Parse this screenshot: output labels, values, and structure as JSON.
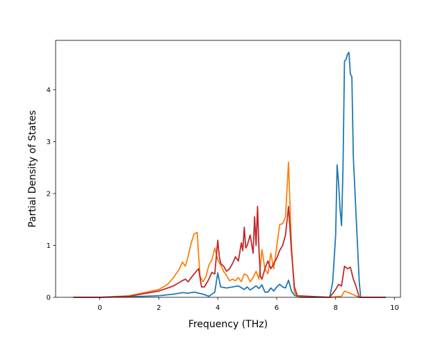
{
  "chart_data": {
    "type": "line",
    "xlabel": "Frequency (THz)",
    "ylabel": "Partial Density of States",
    "xlim": [
      -1.5,
      10.2
    ],
    "ylim": [
      0,
      4.95
    ],
    "xticks": [
      0,
      2,
      4,
      6,
      8,
      10
    ],
    "yticks": [
      0,
      1,
      2,
      3,
      4
    ],
    "grid": false,
    "series": [
      {
        "color": "#1f77b4",
        "x": [
          -0.9,
          0.0,
          1.0,
          2.0,
          2.5,
          2.8,
          3.0,
          3.2,
          3.5,
          3.7,
          3.9,
          4.0,
          4.1,
          4.3,
          4.5,
          4.7,
          4.9,
          5.0,
          5.1,
          5.2,
          5.3,
          5.4,
          5.5,
          5.6,
          5.7,
          5.8,
          5.9,
          6.0,
          6.1,
          6.2,
          6.3,
          6.4,
          6.5,
          6.6,
          6.7,
          6.8,
          7.8,
          7.9,
          8.0,
          8.05,
          8.1,
          8.15,
          8.2,
          8.25,
          8.3,
          8.35,
          8.4,
          8.45,
          8.5,
          8.55,
          8.6,
          8.7,
          8.8,
          8.85,
          9.7
        ],
        "y": [
          0,
          0,
          0.01,
          0.03,
          0.06,
          0.09,
          0.08,
          0.1,
          0.06,
          0.02,
          0.1,
          0.47,
          0.2,
          0.18,
          0.2,
          0.22,
          0.15,
          0.2,
          0.14,
          0.18,
          0.22,
          0.17,
          0.24,
          0.1,
          0.1,
          0.18,
          0.12,
          0.2,
          0.25,
          0.2,
          0.18,
          0.33,
          0.12,
          0.04,
          0.02,
          0,
          0,
          0.3,
          1.2,
          2.55,
          2.2,
          1.7,
          1.38,
          2.5,
          4.55,
          4.58,
          4.68,
          4.72,
          4.3,
          4.25,
          2.7,
          1.5,
          0.3,
          0,
          0
        ]
      },
      {
        "color": "#ff7f0e",
        "x": [
          -0.9,
          0.0,
          1.0,
          2.0,
          2.3,
          2.5,
          2.7,
          2.8,
          2.9,
          3.0,
          3.1,
          3.2,
          3.3,
          3.4,
          3.5,
          3.6,
          3.7,
          3.8,
          3.9,
          4.0,
          4.1,
          4.2,
          4.3,
          4.4,
          4.5,
          4.6,
          4.7,
          4.8,
          4.9,
          5.0,
          5.1,
          5.2,
          5.3,
          5.4,
          5.5,
          5.6,
          5.7,
          5.8,
          5.9,
          6.0,
          6.1,
          6.2,
          6.3,
          6.4,
          6.5,
          6.6,
          6.7,
          7.8,
          8.2,
          8.3,
          8.4,
          8.6,
          8.8,
          9.7
        ],
        "y": [
          0,
          0,
          0.03,
          0.15,
          0.25,
          0.38,
          0.55,
          0.68,
          0.6,
          0.8,
          1.05,
          1.22,
          1.25,
          0.4,
          0.3,
          0.4,
          0.62,
          0.72,
          0.95,
          0.72,
          0.62,
          0.5,
          0.42,
          0.32,
          0.35,
          0.32,
          0.38,
          0.3,
          0.45,
          0.42,
          0.3,
          0.38,
          0.5,
          0.35,
          0.92,
          0.55,
          0.45,
          0.85,
          0.55,
          0.98,
          1.4,
          1.42,
          1.55,
          2.6,
          1.0,
          0.1,
          0.02,
          0,
          0.02,
          0.12,
          0.1,
          0.05,
          0,
          0
        ]
      },
      {
        "color": "#c0282b",
        "x": [
          -0.9,
          0.0,
          1.0,
          2.0,
          2.5,
          2.8,
          2.9,
          3.0,
          3.1,
          3.2,
          3.3,
          3.35,
          3.45,
          3.55,
          3.7,
          3.8,
          3.9,
          4.0,
          4.05,
          4.1,
          4.2,
          4.3,
          4.4,
          4.5,
          4.6,
          4.7,
          4.8,
          4.85,
          4.9,
          4.95,
          5.0,
          5.1,
          5.2,
          5.25,
          5.3,
          5.35,
          5.4,
          5.45,
          5.5,
          5.6,
          5.7,
          5.8,
          5.9,
          6.0,
          6.1,
          6.2,
          6.3,
          6.4,
          6.5,
          6.6,
          6.7,
          7.8,
          8.0,
          8.1,
          8.2,
          8.3,
          8.4,
          8.5,
          8.6,
          8.7,
          8.8,
          9.7
        ],
        "y": [
          0,
          0,
          0.02,
          0.12,
          0.22,
          0.32,
          0.35,
          0.3,
          0.38,
          0.45,
          0.52,
          0.55,
          0.2,
          0.2,
          0.35,
          0.48,
          0.45,
          1.1,
          0.8,
          0.65,
          0.6,
          0.5,
          0.55,
          0.65,
          0.78,
          0.7,
          1.05,
          0.9,
          1.35,
          0.95,
          1.0,
          1.2,
          0.85,
          1.55,
          1.0,
          1.75,
          0.9,
          0.4,
          0.35,
          0.55,
          0.7,
          0.55,
          0.65,
          0.75,
          0.9,
          1.0,
          1.2,
          1.75,
          0.9,
          0.2,
          0.03,
          0,
          0.15,
          0.25,
          0.22,
          0.6,
          0.55,
          0.58,
          0.35,
          0.2,
          0,
          0
        ]
      }
    ]
  }
}
